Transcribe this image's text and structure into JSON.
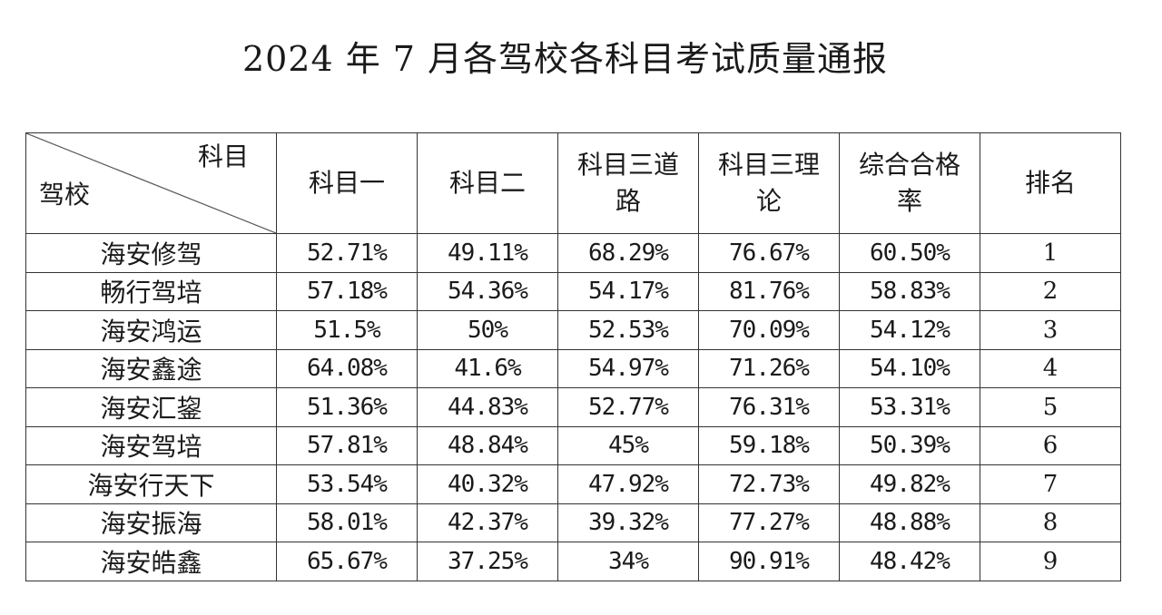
{
  "title": "2024 年 7 月各驾校各科目考试质量通报",
  "header": {
    "corner_top": "科目",
    "corner_bottom": "驾校",
    "columns": [
      "科目一",
      "科目二",
      "科目三道路",
      "科目三理论",
      "综合合格率",
      "排名"
    ]
  },
  "rows": [
    {
      "school": "海安修驾",
      "k1": "52.71%",
      "k2": "49.11%",
      "k3road": "68.29%",
      "k3theory": "76.67%",
      "overall": "60.50%",
      "rank": "1"
    },
    {
      "school": "畅行驾培",
      "k1": "57.18%",
      "k2": "54.36%",
      "k3road": "54.17%",
      "k3theory": "81.76%",
      "overall": "58.83%",
      "rank": "2"
    },
    {
      "school": "海安鸿运",
      "k1": "51.5%",
      "k2": "50%",
      "k3road": "52.53%",
      "k3theory": "70.09%",
      "overall": "54.12%",
      "rank": "3"
    },
    {
      "school": "海安鑫途",
      "k1": "64.08%",
      "k2": "41.6%",
      "k3road": "54.97%",
      "k3theory": "71.26%",
      "overall": "54.10%",
      "rank": "4"
    },
    {
      "school": "海安汇鋆",
      "k1": "51.36%",
      "k2": "44.83%",
      "k3road": "52.77%",
      "k3theory": "76.31%",
      "overall": "53.31%",
      "rank": "5"
    },
    {
      "school": "海安驾培",
      "k1": "57.81%",
      "k2": "48.84%",
      "k3road": "45%",
      "k3theory": "59.18%",
      "overall": "50.39%",
      "rank": "6"
    },
    {
      "school": "海安行天下",
      "k1": "53.54%",
      "k2": "40.32%",
      "k3road": "47.92%",
      "k3theory": "72.73%",
      "overall": "49.82%",
      "rank": "7"
    },
    {
      "school": "海安振海",
      "k1": "58.01%",
      "k2": "42.37%",
      "k3road": "39.32%",
      "k3theory": "77.27%",
      "overall": "48.88%",
      "rank": "8"
    },
    {
      "school": "海安皓鑫",
      "k1": "65.67%",
      "k2": "37.25%",
      "k3road": "34%",
      "k3theory": "90.91%",
      "overall": "48.42%",
      "rank": "9"
    }
  ]
}
